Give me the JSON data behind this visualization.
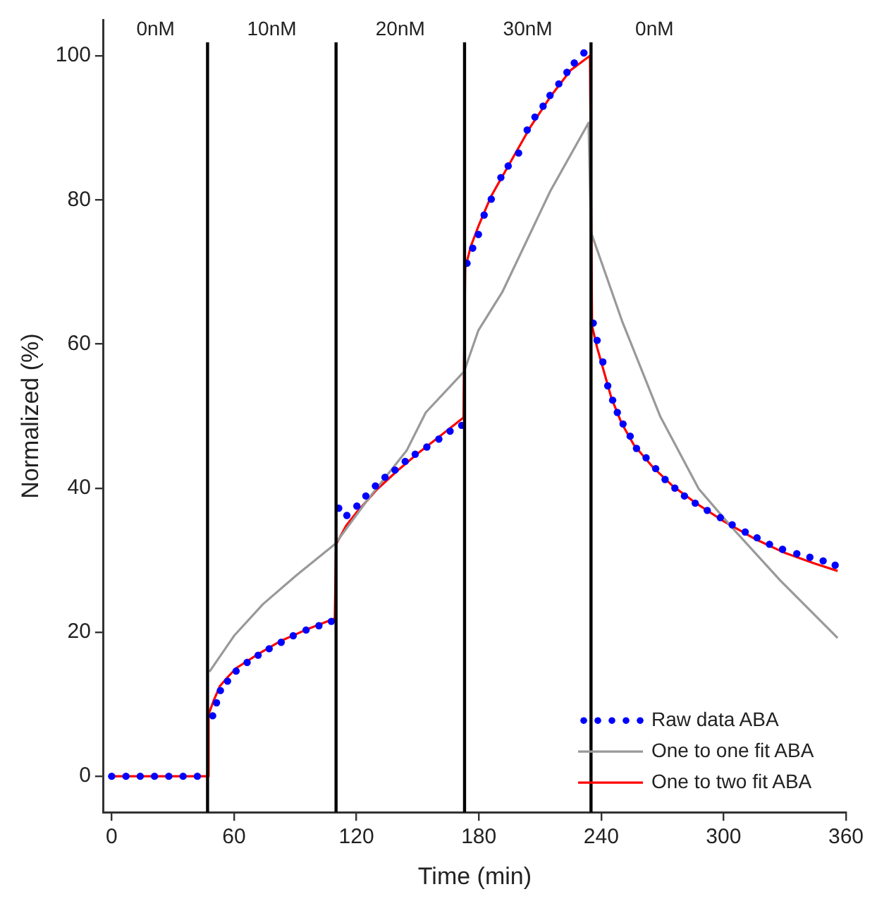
{
  "chart_data": {
    "type": "line",
    "xlabel": "Time (min)",
    "ylabel": "Normalized (%)",
    "xlim": [
      -4,
      360
    ],
    "xticks": [
      0,
      60,
      120,
      180,
      240,
      300,
      360
    ],
    "ylim": [
      -5,
      105
    ],
    "yticks": [
      0,
      20,
      40,
      60,
      80,
      100
    ],
    "grid": false,
    "legend": "bottom right",
    "series": [
      {
        "name": "Raw data ABA",
        "type": "scatter",
        "marker": "circle",
        "color": "#0000ff",
        "x": [
          0,
          7,
          14,
          21,
          28,
          35,
          42,
          49.5,
          51.4,
          53.3,
          56.8,
          61,
          66.4,
          71.8,
          77.2,
          83.1,
          89,
          95.3,
          101.6,
          107.7,
          111.3,
          115.3,
          120.2,
          124.6,
          129.3,
          134,
          138.9,
          143.9,
          148.8,
          154.5,
          160.4,
          165.9,
          171.6,
          174.2,
          177,
          179.8,
          182.6,
          186.1,
          190.8,
          194.4,
          199.5,
          203.7,
          207.5,
          211.5,
          214.9,
          219.2,
          223.2,
          226.8,
          231.5,
          236.1,
          238,
          240.8,
          243.2,
          245.6,
          247.9,
          250.7,
          254.2,
          257.3,
          262,
          266.7,
          271.3,
          276.1,
          280.8,
          286.1,
          292,
          298.4,
          304.2,
          310.6,
          316.4,
          322.5,
          328.9,
          335.9,
          342.3,
          348.8,
          354.7
        ],
        "values": [
          0,
          0,
          0,
          0,
          0,
          0,
          0,
          8.4,
          10.2,
          11.9,
          13.2,
          14.6,
          15.8,
          16.8,
          17.7,
          18.6,
          19.5,
          20.3,
          20.9,
          21.5,
          37.2,
          36.2,
          37.5,
          38.9,
          40.3,
          41.5,
          42.5,
          43.7,
          44.7,
          45.7,
          46.8,
          47.9,
          48.7,
          71.2,
          73.3,
          75.2,
          77.9,
          80.1,
          83.1,
          84.7,
          86.5,
          89.7,
          91.5,
          93,
          94.5,
          96.1,
          97.7,
          99,
          100.4,
          62.9,
          60.5,
          57.5,
          54.2,
          52.2,
          50.5,
          48.9,
          47.2,
          45.5,
          44.2,
          42.7,
          41.2,
          40,
          38.9,
          37.9,
          36.9,
          35.9,
          34.9,
          33.9,
          33.1,
          32.2,
          31.5,
          30.9,
          30.4,
          29.9,
          29.3
        ]
      },
      {
        "name": "One to one fit ABA",
        "color": "#999999",
        "x": [
          47.9,
          60,
          74.2,
          90.6,
          109.4,
          125.8,
          144.6,
          154,
          172.8,
          179.8,
          191.5,
          215,
          233.8,
          235,
          250.2,
          269,
          287.8,
          304.2,
          327.7,
          355.9
        ],
        "values": [
          14.5,
          19.5,
          23.9,
          27.9,
          32.2,
          38.5,
          45.2,
          50.5,
          56.2,
          61.9,
          67.2,
          81.2,
          90.7,
          75.5,
          63.2,
          49.9,
          39.9,
          34.5,
          27.2,
          19.2
        ]
      },
      {
        "name": "One to two fit ABA",
        "color": "#ff0000",
        "x": [
          0,
          47,
          47.5,
          50,
          53,
          57,
          61,
          72,
          83,
          95,
          109.4,
          110,
          115,
          120,
          130,
          140,
          150,
          160,
          172.5,
          173.3,
          176,
          180,
          186,
          195,
          205,
          215,
          225,
          234.5,
          235.5,
          238,
          241,
          245,
          250,
          256,
          265,
          275,
          287,
          300,
          315,
          330,
          345,
          355.9
        ],
        "values": [
          0,
          0,
          8.6,
          10.5,
          12.5,
          13.8,
          15,
          17,
          18.8,
          20.3,
          21.9,
          32.2,
          34.8,
          36.6,
          39.8,
          42.4,
          44.8,
          47,
          49.8,
          70.5,
          73.5,
          76.5,
          80.5,
          85,
          90,
          94.3,
          98,
          100,
          62.5,
          59.5,
          56.5,
          52.5,
          49,
          46,
          43,
          40.3,
          37.8,
          35.4,
          33,
          31,
          29.5,
          28.5
        ]
      }
    ],
    "ref_lines": [
      {
        "axis": "x",
        "value": 47,
        "color": "#000000"
      },
      {
        "axis": "x",
        "value": 110,
        "color": "#000000"
      },
      {
        "axis": "x",
        "value": 173,
        "color": "#000000"
      },
      {
        "axis": "x",
        "value": 235,
        "color": "#000000"
      }
    ],
    "annotations": [
      "0nM",
      "10nM",
      "20nM",
      "30nM",
      "0nM"
    ]
  }
}
